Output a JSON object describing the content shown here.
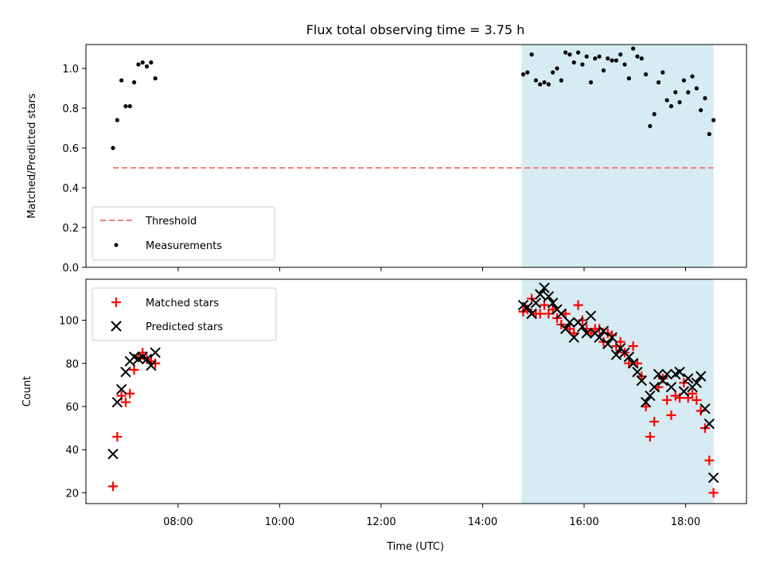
{
  "title": "Flux total observing time = 3.75 h",
  "colors": {
    "threshold": "#f08080",
    "shade": "#add8e6",
    "measurement": "#000000",
    "matched": "#ff0000",
    "predicted": "#000000"
  },
  "chart_data": [
    {
      "type": "scatter",
      "panel": "top",
      "ylabel": "Matched/Predicted stars",
      "xlabel": "",
      "ylim": [
        0,
        1.12
      ],
      "xlim": [
        "06:11",
        "19:12"
      ],
      "y_ticks": [
        {
          "value": 0.0,
          "label": "0.0"
        },
        {
          "value": 0.2,
          "label": "0.2"
        },
        {
          "value": 0.4,
          "label": "0.4"
        },
        {
          "value": 0.6,
          "label": "0.6"
        },
        {
          "value": 0.8,
          "label": "0.8"
        },
        {
          "value": 1.0,
          "label": "1.0"
        }
      ],
      "shaded_interval": [
        "14:46",
        "18:33"
      ],
      "legend": {
        "position": "lower left",
        "threshold_label": "Threshold",
        "measurements_label": "Measurements"
      },
      "threshold": {
        "name": "Threshold",
        "y": 0.5,
        "x_range": [
          "06:43",
          "18:33"
        ]
      },
      "series": [
        {
          "name": "Measurements",
          "marker": "dot",
          "points": [
            [
              "06:43",
              0.6
            ],
            [
              "06:48",
              0.74
            ],
            [
              "06:53",
              0.94
            ],
            [
              "06:58",
              0.81
            ],
            [
              "07:03",
              0.81
            ],
            [
              "07:08",
              0.93
            ],
            [
              "07:13",
              1.02
            ],
            [
              "07:18",
              1.03
            ],
            [
              "07:23",
              1.01
            ],
            [
              "07:28",
              1.03
            ],
            [
              "07:33",
              0.95
            ],
            [
              "14:48",
              0.97
            ],
            [
              "14:53",
              0.98
            ],
            [
              "14:58",
              1.07
            ],
            [
              "15:03",
              0.94
            ],
            [
              "15:08",
              0.92
            ],
            [
              "15:13",
              0.93
            ],
            [
              "15:18",
              0.92
            ],
            [
              "15:23",
              0.98
            ],
            [
              "15:28",
              1.0
            ],
            [
              "15:33",
              0.94
            ],
            [
              "15:38",
              1.08
            ],
            [
              "15:43",
              1.07
            ],
            [
              "15:48",
              1.03
            ],
            [
              "15:53",
              1.08
            ],
            [
              "15:58",
              1.02
            ],
            [
              "16:03",
              1.06
            ],
            [
              "16:08",
              0.93
            ],
            [
              "16:13",
              1.05
            ],
            [
              "16:18",
              1.06
            ],
            [
              "16:23",
              0.99
            ],
            [
              "16:28",
              1.05
            ],
            [
              "16:33",
              1.04
            ],
            [
              "16:38",
              1.04
            ],
            [
              "16:43",
              1.07
            ],
            [
              "16:48",
              1.02
            ],
            [
              "16:53",
              0.95
            ],
            [
              "16:58",
              1.1
            ],
            [
              "17:03",
              1.06
            ],
            [
              "17:08",
              1.05
            ],
            [
              "17:13",
              0.97
            ],
            [
              "17:18",
              0.71
            ],
            [
              "17:23",
              0.77
            ],
            [
              "17:28",
              0.93
            ],
            [
              "17:33",
              0.98
            ],
            [
              "17:38",
              0.84
            ],
            [
              "17:43",
              0.81
            ],
            [
              "17:48",
              0.88
            ],
            [
              "17:53",
              0.83
            ],
            [
              "17:58",
              0.94
            ],
            [
              "18:03",
              0.88
            ],
            [
              "18:08",
              0.96
            ],
            [
              "18:13",
              0.9
            ],
            [
              "18:18",
              0.79
            ],
            [
              "18:23",
              0.85
            ],
            [
              "18:28",
              0.67
            ],
            [
              "18:33",
              0.74
            ]
          ]
        }
      ]
    },
    {
      "type": "scatter",
      "panel": "bottom",
      "ylabel": "Count",
      "xlabel": "Time (UTC)",
      "ylim": [
        15,
        119
      ],
      "xlim": [
        "06:11",
        "19:12"
      ],
      "y_ticks": [
        {
          "value": 20,
          "label": "20"
        },
        {
          "value": 40,
          "label": "40"
        },
        {
          "value": 60,
          "label": "60"
        },
        {
          "value": 80,
          "label": "80"
        },
        {
          "value": 100,
          "label": "100"
        }
      ],
      "x_ticks": [
        {
          "value": "08:00",
          "label": "08:00"
        },
        {
          "value": "10:00",
          "label": "10:00"
        },
        {
          "value": "12:00",
          "label": "12:00"
        },
        {
          "value": "14:00",
          "label": "14:00"
        },
        {
          "value": "16:00",
          "label": "16:00"
        },
        {
          "value": "18:00",
          "label": "18:00"
        }
      ],
      "shaded_interval": [
        "14:46",
        "18:33"
      ],
      "legend": {
        "position": "upper left",
        "matched_label": "Matched stars",
        "predicted_label": "Predicted stars"
      },
      "series": [
        {
          "name": "Matched stars",
          "marker": "plus",
          "points": [
            [
              "06:43",
              23
            ],
            [
              "06:48",
              46
            ],
            [
              "06:53",
              65
            ],
            [
              "06:58",
              62
            ],
            [
              "07:03",
              66
            ],
            [
              "07:08",
              77
            ],
            [
              "07:13",
              83
            ],
            [
              "07:18",
              85
            ],
            [
              "07:23",
              82
            ],
            [
              "07:28",
              81
            ],
            [
              "07:33",
              80
            ],
            [
              "14:48",
              104
            ],
            [
              "14:53",
              105
            ],
            [
              "14:58",
              110
            ],
            [
              "15:03",
              103
            ],
            [
              "15:08",
              103
            ],
            [
              "15:13",
              107
            ],
            [
              "15:18",
              103
            ],
            [
              "15:23",
              105
            ],
            [
              "15:28",
              101
            ],
            [
              "15:33",
              98
            ],
            [
              "15:38",
              103
            ],
            [
              "15:43",
              96
            ],
            [
              "15:48",
              94
            ],
            [
              "15:53",
              107
            ],
            [
              "15:58",
              100
            ],
            [
              "16:03",
              96
            ],
            [
              "16:08",
              94
            ],
            [
              "16:13",
              96
            ],
            [
              "16:18",
              96
            ],
            [
              "16:23",
              90
            ],
            [
              "16:28",
              94
            ],
            [
              "16:33",
              93
            ],
            [
              "16:38",
              88
            ],
            [
              "16:43",
              90
            ],
            [
              "16:48",
              85
            ],
            [
              "16:53",
              80
            ],
            [
              "16:58",
              88
            ],
            [
              "17:03",
              80
            ],
            [
              "17:08",
              74
            ],
            [
              "17:13",
              60
            ],
            [
              "17:18",
              46
            ],
            [
              "17:23",
              53
            ],
            [
              "17:28",
              69
            ],
            [
              "17:33",
              73
            ],
            [
              "17:38",
              63
            ],
            [
              "17:43",
              56
            ],
            [
              "17:48",
              65
            ],
            [
              "17:53",
              64
            ],
            [
              "17:58",
              71
            ],
            [
              "18:03",
              64
            ],
            [
              "18:08",
              66
            ],
            [
              "18:13",
              63
            ],
            [
              "18:18",
              58
            ],
            [
              "18:23",
              50
            ],
            [
              "18:28",
              35
            ],
            [
              "18:33",
              20
            ]
          ]
        },
        {
          "name": "Predicted stars",
          "marker": "x",
          "points": [
            [
              "06:43",
              38
            ],
            [
              "06:48",
              62
            ],
            [
              "06:53",
              68
            ],
            [
              "06:58",
              76
            ],
            [
              "07:03",
              81
            ],
            [
              "07:08",
              83
            ],
            [
              "07:13",
              82
            ],
            [
              "07:18",
              83
            ],
            [
              "07:23",
              82
            ],
            [
              "07:28",
              79
            ],
            [
              "07:33",
              85
            ],
            [
              "14:48",
              107
            ],
            [
              "14:53",
              106
            ],
            [
              "14:58",
              103
            ],
            [
              "15:03",
              108
            ],
            [
              "15:08",
              112
            ],
            [
              "15:13",
              115
            ],
            [
              "15:18",
              111
            ],
            [
              "15:23",
              108
            ],
            [
              "15:28",
              105
            ],
            [
              "15:33",
              103
            ],
            [
              "15:38",
              96
            ],
            [
              "15:43",
              99
            ],
            [
              "15:48",
              92
            ],
            [
              "15:53",
              99
            ],
            [
              "15:58",
              97
            ],
            [
              "16:03",
              94
            ],
            [
              "16:08",
              102
            ],
            [
              "16:13",
              94
            ],
            [
              "16:18",
              92
            ],
            [
              "16:23",
              95
            ],
            [
              "16:28",
              89
            ],
            [
              "16:33",
              92
            ],
            [
              "16:38",
              84
            ],
            [
              "16:43",
              87
            ],
            [
              "16:48",
              85
            ],
            [
              "16:53",
              83
            ],
            [
              "16:58",
              80
            ],
            [
              "17:03",
              76
            ],
            [
              "17:08",
              72
            ],
            [
              "17:13",
              62
            ],
            [
              "17:18",
              65
            ],
            [
              "17:23",
              69
            ],
            [
              "17:28",
              75
            ],
            [
              "17:33",
              72
            ],
            [
              "17:38",
              75
            ],
            [
              "17:43",
              69
            ],
            [
              "17:48",
              75
            ],
            [
              "17:53",
              76
            ],
            [
              "17:58",
              67
            ],
            [
              "18:03",
              73
            ],
            [
              "18:08",
              69
            ],
            [
              "18:13",
              71
            ],
            [
              "18:18",
              74
            ],
            [
              "18:23",
              59
            ],
            [
              "18:28",
              52
            ],
            [
              "18:33",
              27
            ]
          ]
        }
      ]
    }
  ]
}
